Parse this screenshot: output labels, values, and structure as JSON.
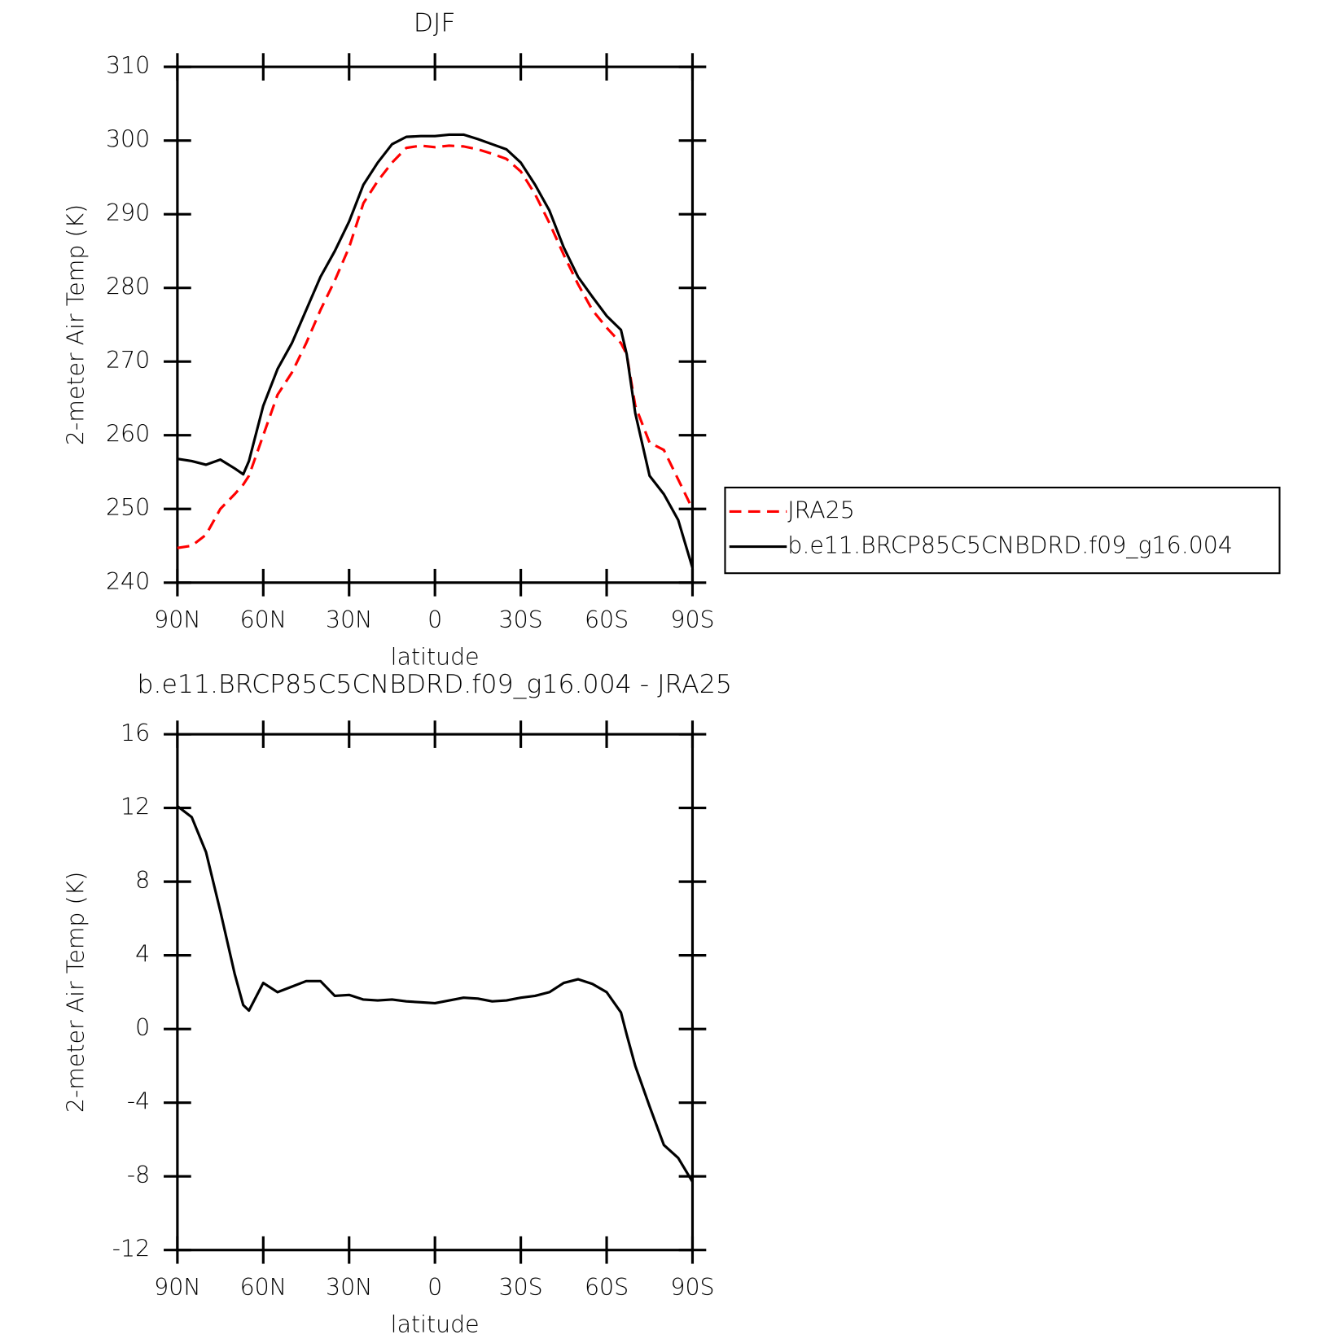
{
  "chart_data": [
    {
      "type": "line",
      "title": "DJF",
      "xlabel": "latitude",
      "ylabel": "2-meter Air Temp (K)",
      "x": [
        90,
        85,
        80,
        75,
        70,
        67,
        65,
        60,
        55,
        50,
        45,
        40,
        35,
        30,
        25,
        20,
        15,
        10,
        5,
        0,
        -5,
        -10,
        -15,
        -20,
        -25,
        -30,
        -35,
        -40,
        -45,
        -50,
        -55,
        -60,
        -65,
        -67,
        -70,
        -75,
        -80,
        -85,
        -90
      ],
      "xlim": [
        90,
        -90
      ],
      "xticks": [
        {
          "value": 90,
          "label": "90N"
        },
        {
          "value": 60,
          "label": "60N"
        },
        {
          "value": 30,
          "label": "30N"
        },
        0,
        {
          "value": -30,
          "label": "30S"
        },
        {
          "value": -60,
          "label": "60S"
        },
        {
          "value": -90,
          "label": "90S"
        }
      ],
      "ylim": [
        240,
        310
      ],
      "yticks": [
        240,
        250,
        260,
        270,
        280,
        290,
        300,
        310
      ],
      "legend": "right",
      "series": [
        {
          "name": "JRA25",
          "color": "#ff0000",
          "style": "dashed",
          "values": [
            244.7,
            245.0,
            246.5,
            250,
            252,
            253.3,
            254.5,
            260,
            265.5,
            268.5,
            272.5,
            277,
            281,
            285.5,
            291.5,
            294.5,
            297,
            299,
            299.3,
            299.1,
            299.3,
            299.2,
            298.8,
            298.2,
            297.5,
            295.8,
            292.7,
            288.8,
            284.5,
            280.5,
            277,
            274.6,
            272.5,
            271,
            264,
            259,
            258,
            254,
            250
          ]
        },
        {
          "name": "b.e11.BRCP85C5CNBDRD.f09_g16.004",
          "color": "#000000",
          "style": "solid",
          "values": [
            256.8,
            256.5,
            256.0,
            256.7,
            255.5,
            254.7,
            256.5,
            264,
            269,
            272.5,
            277,
            281.5,
            285,
            289,
            294,
            297,
            299.5,
            300.5,
            300.6,
            300.6,
            300.8,
            300.8,
            300.2,
            299.5,
            298.8,
            297.0,
            294,
            290.5,
            285.5,
            281.5,
            278.8,
            276.2,
            274.3,
            271,
            263,
            254.5,
            252,
            248.5,
            242
          ]
        }
      ]
    },
    {
      "type": "line",
      "title": "b.e11.BRCP85C5CNBDRD.f09_g16.004 - JRA25",
      "xlabel": "latitude",
      "ylabel": "2-meter Air Temp (K)",
      "x": [
        90,
        85,
        80,
        75,
        70,
        67,
        65,
        60,
        55,
        50,
        45,
        40,
        35,
        30,
        25,
        20,
        15,
        10,
        5,
        0,
        -5,
        -10,
        -15,
        -20,
        -25,
        -30,
        -35,
        -40,
        -45,
        -50,
        -55,
        -60,
        -65,
        -67,
        -70,
        -75,
        -80,
        -85,
        -90
      ],
      "xlim": [
        90,
        -90
      ],
      "xticks": [
        {
          "value": 90,
          "label": "90N"
        },
        {
          "value": 60,
          "label": "60N"
        },
        {
          "value": 30,
          "label": "30N"
        },
        0,
        {
          "value": -30,
          "label": "30S"
        },
        {
          "value": -60,
          "label": "60S"
        },
        {
          "value": -90,
          "label": "90S"
        }
      ],
      "ylim": [
        -12,
        16
      ],
      "yticks": [
        -12,
        -8,
        -4,
        0,
        4,
        8,
        12,
        16
      ],
      "color": "#000000",
      "values": [
        12.1,
        11.5,
        9.6,
        6.4,
        3.0,
        1.3,
        1.0,
        2.5,
        2.0,
        2.3,
        2.6,
        2.6,
        1.8,
        1.85,
        1.6,
        1.55,
        1.6,
        1.5,
        1.45,
        1.4,
        1.55,
        1.7,
        1.65,
        1.5,
        1.55,
        1.7,
        1.8,
        2.0,
        2.5,
        2.7,
        2.45,
        2.0,
        0.9,
        -0.3,
        -2.0,
        -4.2,
        -6.3,
        -7.0,
        -8.3
      ]
    }
  ]
}
